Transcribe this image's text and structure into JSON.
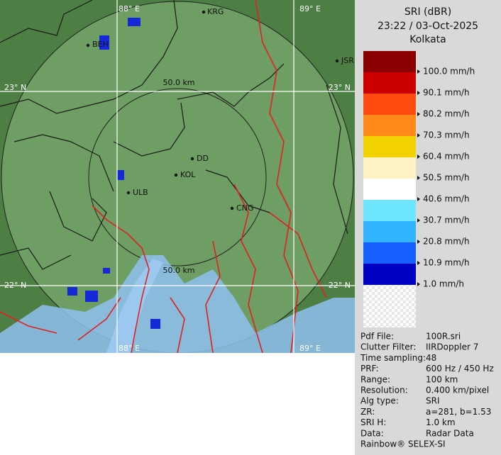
{
  "map": {
    "grid_labels": {
      "top_left": "88° E",
      "top_right": "89° E",
      "bottom_left": "88° E",
      "bottom_right": "89° E",
      "upper_left": "23° N",
      "upper_right": "23° N",
      "lower_left": "22° N",
      "lower_right": "22° N"
    },
    "range_labels": [
      "50.0 km",
      "50.0 km"
    ],
    "cities": [
      "KRG",
      "BEH",
      "JSR",
      "DD",
      "KOL",
      "ULB",
      "CNG"
    ]
  },
  "legend": {
    "title": "SRI (dBR)",
    "time": "23:22 / 03-Oct-2025",
    "site": "Kolkata",
    "items": [
      {
        "label": "100.0 mm/h",
        "color": "#8a0000"
      },
      {
        "label": "90.1 mm/h",
        "color": "#cc0000"
      },
      {
        "label": "80.2 mm/h",
        "color": "#ff4a10"
      },
      {
        "label": "70.3 mm/h",
        "color": "#ff8a1a"
      },
      {
        "label": "60.4 mm/h",
        "color": "#f2d200"
      },
      {
        "label": "50.5 mm/h",
        "color": "#fdf3c4"
      },
      {
        "label": "40.6 mm/h",
        "color": "#ffffff"
      },
      {
        "label": "30.7 mm/h",
        "color": "#6fe6ff"
      },
      {
        "label": "20.8 mm/h",
        "color": "#33b4ff"
      },
      {
        "label": "10.9 mm/h",
        "color": "#1560ff"
      },
      {
        "label": "1.0 mm/h",
        "color": "#0000c0"
      }
    ]
  },
  "info": [
    [
      "Pdf File:",
      "100R.sri"
    ],
    [
      "Clutter Filter:",
      "IIRDoppler 7"
    ],
    [
      "Time sampling:",
      "48"
    ],
    [
      "PRF:",
      "600 Hz / 450 Hz"
    ],
    [
      "Range:",
      "100 km"
    ],
    [
      "Resolution:",
      "0.400 km/pixel"
    ],
    [
      "Alg type:",
      "SRI"
    ],
    [
      "ZR:",
      "a=281, b=1.53"
    ],
    [
      "SRI H:",
      "1.0 km"
    ],
    [
      "Data:",
      "Radar Data"
    ]
  ],
  "footer": "Rainbow® SELEX-SI"
}
